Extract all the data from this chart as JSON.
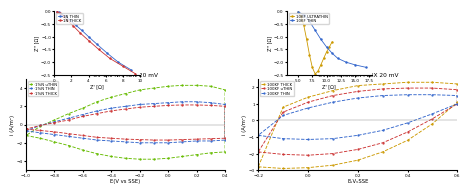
{
  "fig_width": 4.74,
  "fig_height": 1.94,
  "dpi": 100,
  "eis1": {
    "xlabel": "Z' [Ω]",
    "ylabel": "Z'' [Ω]",
    "xlim": [
      0,
      10
    ],
    "ylim": [
      -2.5,
      0
    ],
    "yticks": [
      -2.5,
      -2.0,
      -1.5,
      -1.0,
      -0.5,
      0
    ],
    "legend": [
      "1N THIN",
      "1N THICK"
    ],
    "colors": [
      "#3366cc",
      "#cc3333"
    ],
    "thin_x": [
      0.3,
      0.5,
      0.8,
      1.2,
      1.8,
      2.5,
      3.2,
      4.0,
      5.0,
      6.2,
      7.5,
      9.0
    ],
    "thin_y": [
      -0.02,
      -0.05,
      -0.1,
      -0.2,
      -0.35,
      -0.55,
      -0.75,
      -1.0,
      -1.3,
      -1.65,
      -2.0,
      -2.3
    ],
    "thick_x": [
      0.3,
      0.6,
      1.0,
      1.5,
      2.2,
      3.0,
      4.0,
      5.2,
      6.5,
      8.0,
      9.5
    ],
    "thick_y": [
      -0.02,
      -0.08,
      -0.18,
      -0.35,
      -0.58,
      -0.85,
      -1.15,
      -1.5,
      -1.85,
      -2.15,
      -2.45
    ]
  },
  "eis2": {
    "xlabel": "Z' [Ω]",
    "ylabel": "Z'' [Ω]",
    "xlim": [
      3,
      18
    ],
    "ylim": [
      -2.5,
      0
    ],
    "yticks": [
      -2.5,
      -2.0,
      -1.5,
      -1.0,
      -0.5,
      0
    ],
    "legend": [
      "10KF ULTRATHIN",
      "10KF THIN"
    ],
    "colors": [
      "#cc9900",
      "#3366cc"
    ],
    "ultrathin_x": [
      5.0,
      5.5,
      6.0,
      6.5,
      7.0,
      7.5,
      8.0,
      8.5,
      9.0,
      9.5,
      10.0,
      10.5,
      11.0
    ],
    "ultrathin_y": [
      -0.05,
      -0.2,
      -0.55,
      -1.1,
      -1.7,
      -2.2,
      -2.45,
      -2.35,
      -2.1,
      -1.85,
      -1.6,
      -1.4,
      -1.2
    ],
    "thin_x": [
      5.0,
      6.0,
      7.0,
      8.0,
      9.0,
      10.0,
      11.0,
      12.0,
      13.5,
      15.0,
      17.0
    ],
    "thin_y": [
      -0.03,
      -0.15,
      -0.4,
      -0.75,
      -1.1,
      -1.4,
      -1.65,
      -1.85,
      -2.0,
      -2.1,
      -2.2
    ]
  },
  "cv1": {
    "title": "CV 1% NAFION 20 mV",
    "xlabel": "E(V vs SSE)",
    "ylabel": "i (A/m²)",
    "xlim": [
      -1.0,
      0.4
    ],
    "ylim": [
      -5,
      5
    ],
    "xticks": [
      -1.0,
      -0.8,
      -0.6,
      -0.4,
      -0.2,
      0.0,
      0.2,
      0.4
    ],
    "yticks": [
      -4,
      -2,
      0,
      2,
      4
    ],
    "legend": [
      "1%N uTHIN",
      "1%N THIN",
      "1%N THICK"
    ],
    "colors": [
      "#66bb00",
      "#3366cc",
      "#cc3333"
    ],
    "uthin_fwd_x": [
      -1.0,
      -0.9,
      -0.8,
      -0.7,
      -0.6,
      -0.5,
      -0.4,
      -0.3,
      -0.2,
      -0.1,
      0.0,
      0.1,
      0.2,
      0.3,
      0.4
    ],
    "uthin_fwd_y": [
      -1.2,
      -1.5,
      -1.9,
      -2.3,
      -2.8,
      -3.2,
      -3.5,
      -3.7,
      -3.8,
      -3.8,
      -3.7,
      -3.5,
      -3.3,
      -3.1,
      -3.0
    ],
    "uthin_rev_x": [
      0.4,
      0.3,
      0.2,
      0.1,
      0.0,
      -0.1,
      -0.2,
      -0.3,
      -0.4,
      -0.5,
      -0.6,
      -0.7,
      -0.8,
      -0.9,
      -1.0
    ],
    "uthin_rev_y": [
      3.8,
      4.2,
      4.3,
      4.3,
      4.2,
      4.0,
      3.8,
      3.4,
      3.0,
      2.5,
      1.8,
      1.2,
      0.5,
      -0.2,
      -1.2
    ],
    "thin_fwd_x": [
      -1.0,
      -0.9,
      -0.8,
      -0.7,
      -0.6,
      -0.5,
      -0.4,
      -0.3,
      -0.2,
      -0.1,
      0.0,
      0.1,
      0.2,
      0.3,
      0.4
    ],
    "thin_fwd_y": [
      -0.7,
      -0.9,
      -1.1,
      -1.3,
      -1.5,
      -1.7,
      -1.8,
      -1.9,
      -2.0,
      -2.0,
      -2.0,
      -1.9,
      -1.8,
      -1.8,
      -1.7
    ],
    "thin_rev_x": [
      0.4,
      0.3,
      0.2,
      0.1,
      0.0,
      -0.1,
      -0.2,
      -0.3,
      -0.4,
      -0.5,
      -0.6,
      -0.7,
      -0.8,
      -0.9,
      -1.0
    ],
    "thin_rev_y": [
      2.2,
      2.4,
      2.5,
      2.5,
      2.4,
      2.3,
      2.2,
      2.0,
      1.8,
      1.5,
      1.1,
      0.7,
      0.3,
      -0.1,
      -0.7
    ],
    "thick_fwd_x": [
      -1.0,
      -0.9,
      -0.8,
      -0.7,
      -0.6,
      -0.5,
      -0.4,
      -0.3,
      -0.2,
      -0.1,
      0.0,
      0.1,
      0.2,
      0.3,
      0.4
    ],
    "thick_fwd_y": [
      -0.5,
      -0.65,
      -0.8,
      -1.0,
      -1.2,
      -1.4,
      -1.5,
      -1.6,
      -1.65,
      -1.7,
      -1.7,
      -1.65,
      -1.6,
      -1.55,
      -1.5
    ],
    "thick_rev_x": [
      0.4,
      0.3,
      0.2,
      0.1,
      0.0,
      -0.1,
      -0.2,
      -0.3,
      -0.4,
      -0.5,
      -0.6,
      -0.7,
      -0.8,
      -0.9,
      -1.0
    ],
    "thick_rev_y": [
      2.0,
      2.1,
      2.15,
      2.15,
      2.1,
      2.0,
      1.9,
      1.7,
      1.5,
      1.2,
      0.9,
      0.5,
      0.2,
      -0.1,
      -0.5
    ]
  },
  "cv2": {
    "title": "CV 10% KINAR FLEX 20 mV",
    "xlabel": "EᵥVᵥSSE",
    "ylabel": "i (A/m²)",
    "xlim": [
      -0.2,
      0.6
    ],
    "ylim": [
      -3.0,
      2.5
    ],
    "xticks": [
      -0.2,
      0.0,
      0.2,
      0.4,
      0.6
    ],
    "yticks": [
      -2,
      -1,
      0,
      1,
      2
    ],
    "legend": [
      "100KF THICK",
      "100KF uTHIN",
      "100KF THIN"
    ],
    "colors": [
      "#cc9900",
      "#cc3333",
      "#3366cc"
    ],
    "thick_fwd_x": [
      -0.2,
      -0.1,
      0.0,
      0.1,
      0.2,
      0.3,
      0.4,
      0.5,
      0.6
    ],
    "thick_fwd_y": [
      -2.8,
      -2.9,
      -2.85,
      -2.7,
      -2.4,
      -1.9,
      -1.2,
      -0.2,
      1.1
    ],
    "thick_rev_x": [
      0.6,
      0.5,
      0.4,
      0.3,
      0.2,
      0.1,
      0.0,
      -0.1,
      -0.2
    ],
    "thick_rev_y": [
      2.2,
      2.3,
      2.3,
      2.2,
      2.1,
      1.8,
      1.4,
      0.8,
      -2.8
    ],
    "uthin_fwd_x": [
      -0.2,
      -0.1,
      0.0,
      0.1,
      0.2,
      0.3,
      0.4,
      0.5,
      0.6
    ],
    "uthin_fwd_y": [
      -1.9,
      -2.05,
      -2.1,
      -2.0,
      -1.75,
      -1.35,
      -0.7,
      0.1,
      1.0
    ],
    "uthin_rev_x": [
      0.6,
      0.5,
      0.4,
      0.3,
      0.2,
      0.1,
      0.0,
      -0.1,
      -0.2
    ],
    "uthin_rev_y": [
      1.85,
      1.95,
      1.95,
      1.9,
      1.75,
      1.5,
      1.1,
      0.5,
      -1.9
    ],
    "thin_fwd_x": [
      -0.2,
      -0.1,
      0.0,
      0.1,
      0.2,
      0.3,
      0.4,
      0.5,
      0.6
    ],
    "thin_fwd_y": [
      -0.9,
      -1.1,
      -1.15,
      -1.1,
      -0.9,
      -0.6,
      -0.15,
      0.4,
      1.0
    ],
    "thin_rev_x": [
      0.6,
      0.5,
      0.4,
      0.3,
      0.2,
      0.1,
      0.0,
      -0.1,
      -0.2
    ],
    "thin_rev_y": [
      1.5,
      1.55,
      1.55,
      1.5,
      1.35,
      1.1,
      0.75,
      0.3,
      -0.9
    ]
  }
}
